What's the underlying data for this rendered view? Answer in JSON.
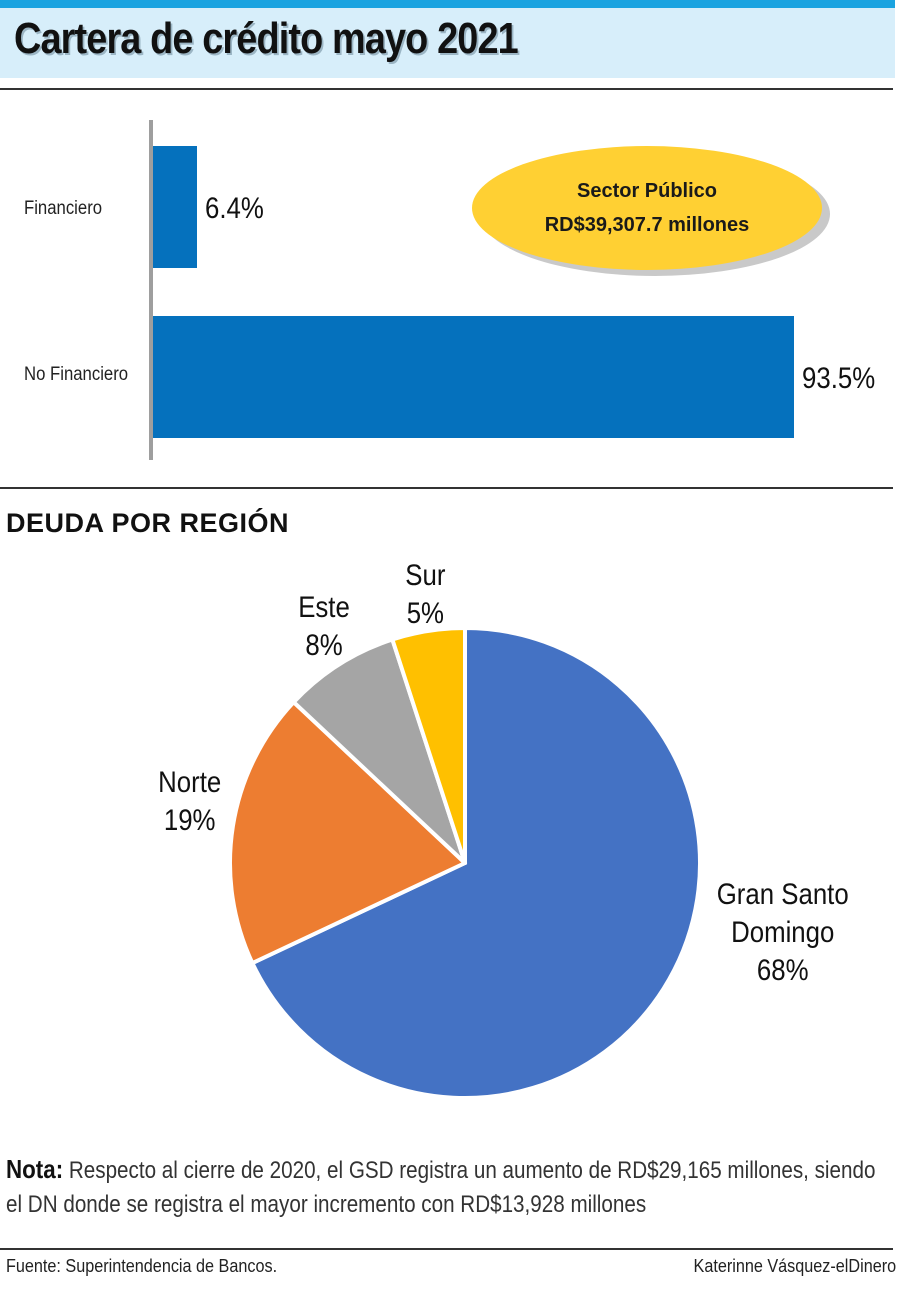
{
  "header": {
    "title": "Cartera de crédito mayo 2021"
  },
  "chart_data": [
    {
      "type": "bar",
      "orientation": "horizontal",
      "categories": [
        "Financiero",
        "No Financiero"
      ],
      "values": [
        6.4,
        93.5
      ],
      "value_labels": [
        "6.4%",
        "93.5%"
      ],
      "unit": "%",
      "colors": [
        "#0571bd"
      ]
    },
    {
      "type": "pie",
      "title": "DEUDA POR REGIÓN",
      "slices": [
        {
          "name": "Gran Santo Domingo",
          "value": 68,
          "label_lines": [
            "Gran Santo",
            "Domingo",
            "68%"
          ],
          "color": "#4472c4"
        },
        {
          "name": "Norte",
          "value": 19,
          "label_lines": [
            "Norte",
            "19%"
          ],
          "color": "#ed7d31"
        },
        {
          "name": "Este",
          "value": 8,
          "label_lines": [
            "Este",
            "8%"
          ],
          "color": "#a5a5a5"
        },
        {
          "name": "Sur",
          "value": 5,
          "label_lines": [
            "Sur",
            "5%"
          ],
          "color": "#ffc000"
        }
      ]
    }
  ],
  "callout": {
    "line1": "Sector Público",
    "line2": "RD$39,307.7 millones"
  },
  "note": {
    "label": "Nota:",
    "text": " Respecto al cierre de 2020, el GSD registra un aumento de RD$29,165 millones, siendo el DN donde se registra el mayor incremento con RD$13,928 millones"
  },
  "footer": {
    "source": "Fuente: Superintendencia de Bancos.",
    "credit": "Katerinne Vásquez-elDinero"
  }
}
